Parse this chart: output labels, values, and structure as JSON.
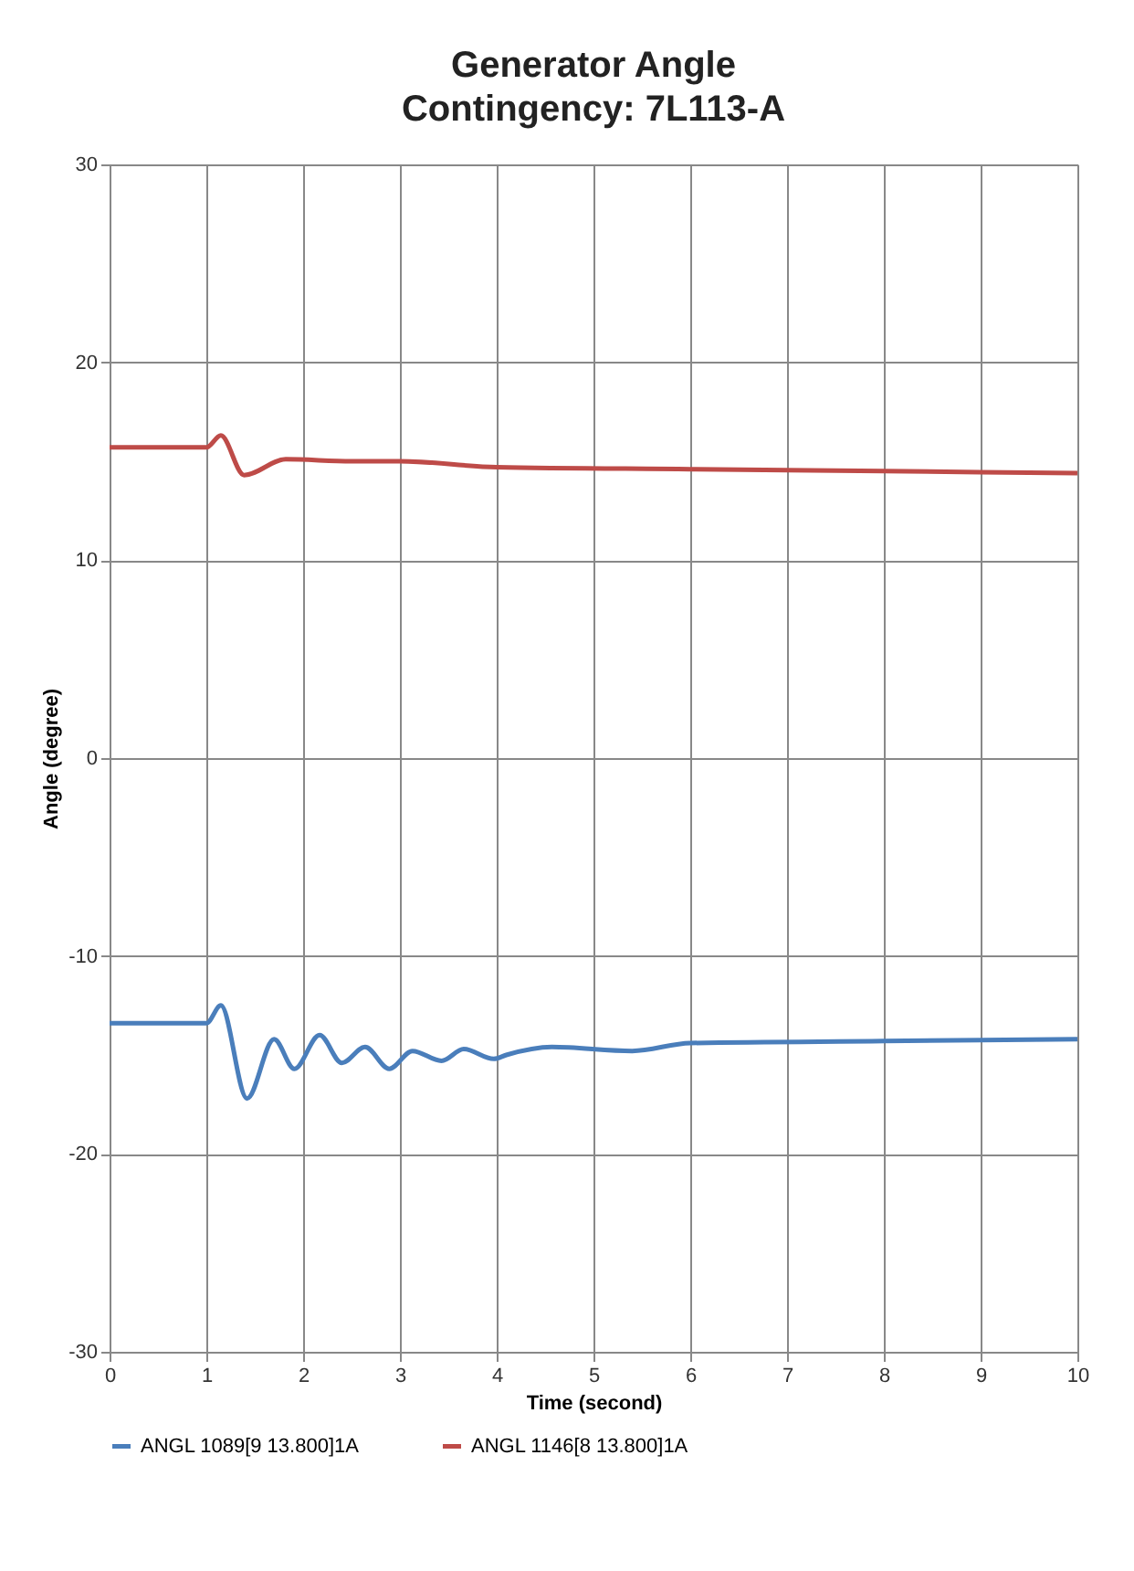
{
  "chart_data": {
    "type": "line",
    "title": "Generator Angle",
    "subtitle": "Contingency: 7L113-A",
    "xlabel": "Time (second)",
    "ylabel": "Angle (degree)",
    "xlim": [
      0,
      10
    ],
    "xticks": [
      0,
      1,
      2,
      3,
      4,
      5,
      6,
      7,
      8,
      9,
      10
    ],
    "ylim": [
      -30,
      30
    ],
    "yticks": [
      -30,
      -20,
      -10,
      0,
      10,
      20,
      30
    ],
    "grid": true,
    "legend": "bottom",
    "marker": "none",
    "line_style": "solid",
    "series": [
      {
        "name": "ANGL 1089[9 13.800]1A",
        "color": "#4a7ebb",
        "x": [
          0,
          1.0,
          1.15,
          1.42,
          1.7,
          1.91,
          2.17,
          2.4,
          2.64,
          2.89,
          3.13,
          3.43,
          3.66,
          3.97,
          4.1,
          4.57,
          5.4,
          6.0,
          8.0,
          10.0
        ],
        "values": [
          -13.4,
          -13.4,
          -12.5,
          -17.2,
          -14.2,
          -15.7,
          -14.0,
          -15.4,
          -14.6,
          -15.7,
          -14.8,
          -15.3,
          -14.7,
          -15.2,
          -15.0,
          -14.6,
          -14.8,
          -14.4,
          -14.3,
          -14.2
        ]
      },
      {
        "name": "ANGL 1146[8 13.800]1A",
        "color": "#be4b48",
        "x": [
          0,
          1.0,
          1.15,
          1.39,
          1.82,
          2.5,
          3.0,
          4.0,
          6.0,
          8.0,
          10.0
        ],
        "values": [
          15.7,
          15.7,
          16.3,
          14.3,
          15.1,
          15.0,
          15.0,
          14.7,
          14.6,
          14.5,
          14.4
        ]
      }
    ]
  }
}
